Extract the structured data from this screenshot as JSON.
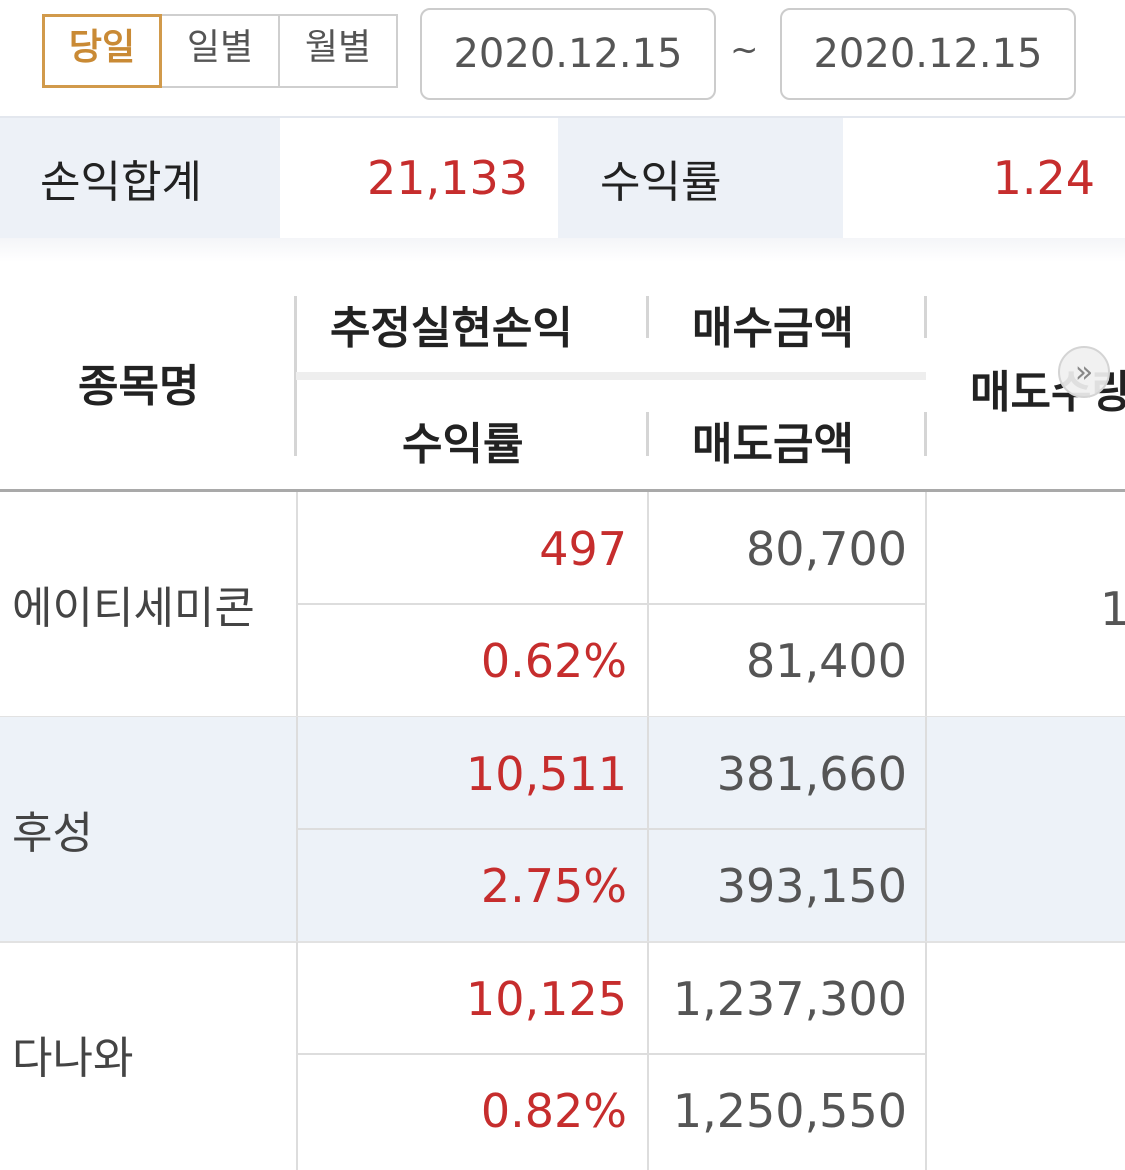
{
  "period_tabs": [
    "당일",
    "일별",
    "월별"
  ],
  "active_tab": "당일",
  "date_range": {
    "from": "2020.12.15",
    "separator": "~",
    "to": "2020.12.15"
  },
  "summary": {
    "total_pl_label": "손익합계",
    "total_pl_value": "21,133",
    "return_label": "수익률",
    "return_value": "1.24"
  },
  "table": {
    "headers": {
      "name": "종목명",
      "est_realized_pl": "추정실현손익",
      "buy_amount": "매수금액",
      "return_rate": "수익률",
      "sell_amount": "매도금액",
      "sell_qty": "매도수량"
    },
    "rows": [
      {
        "name": "에이티세미콘",
        "pl": "497",
        "rate": "0.62%",
        "buy": "80,700",
        "sell": "81,400",
        "partial": "1"
      },
      {
        "name": "후성",
        "pl": "10,511",
        "rate": "2.75%",
        "buy": "381,660",
        "sell": "393,150",
        "partial": ""
      },
      {
        "name": "다나와",
        "pl": "10,125",
        "rate": "0.82%",
        "buy": "1,237,300",
        "sell": "1,250,550",
        "partial": ""
      }
    ]
  },
  "colors": {
    "accent": "#d19a4b",
    "profit": "#c62d2d",
    "row_alt": "#edf2f8"
  },
  "icons": {
    "scroll_hint": "double-chevron-right-icon"
  }
}
